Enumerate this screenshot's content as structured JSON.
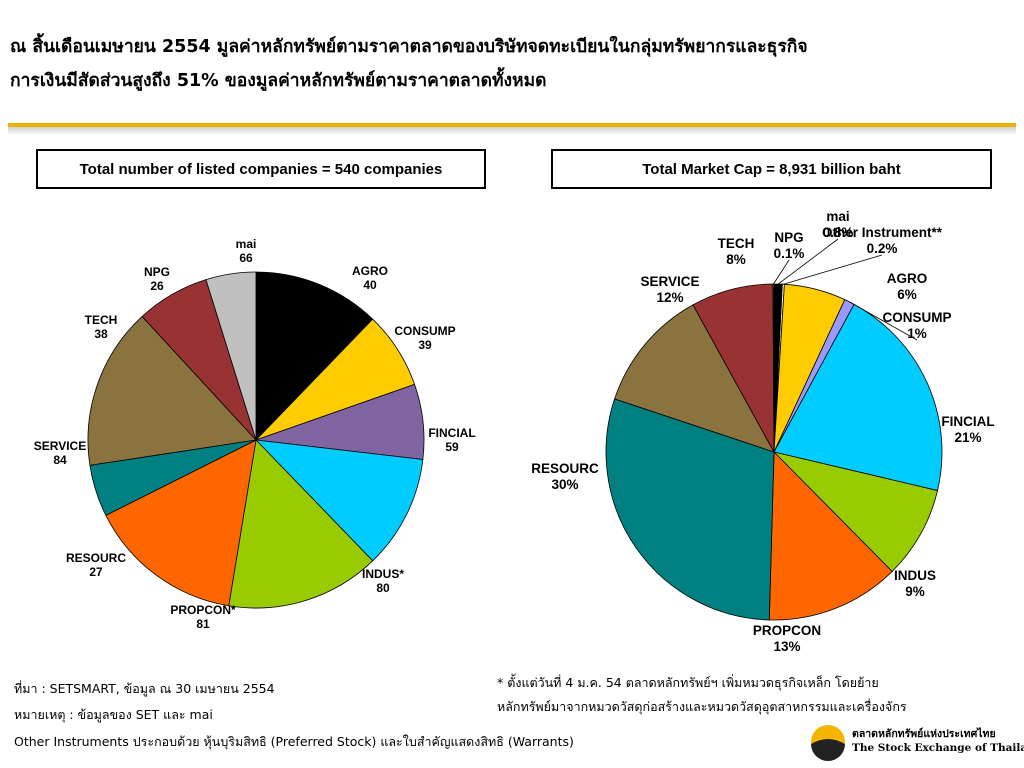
{
  "headline": {
    "line1": "ณ สิ้นเดือนเมษายน 2554 มูลค่าหลักทรัพย์ตามราคาตลาดของบริษัทจดทะเบียนในกลุ่มทรัพยากรและธุรกิจ",
    "line2": "การเงินมีสัดส่วนสูงถึง 51% ของมูลค่าหลักทรัพย์ตามราคาตลาดทั้งหมด"
  },
  "colors": {
    "accent_rule": "#e8b400",
    "mai": "#000000",
    "agro": "#ffcc00",
    "consump": "#8064a2",
    "fincial": "#00ccff",
    "indus": "#99cc00",
    "propcon": "#ff6600",
    "resourc": "#008080",
    "service": "#8b7340",
    "tech": "#993333",
    "npg": "#c0c0c0",
    "other": "#ffffcc"
  },
  "chart_data": [
    {
      "type": "pie",
      "title": "Total number of listed companies = 540 companies",
      "unit": "companies",
      "slices": [
        {
          "name": "mai",
          "value": 66,
          "label": "66",
          "color": "#000000"
        },
        {
          "name": "AGRO",
          "value": 40,
          "label": "40",
          "color": "#ffcc00"
        },
        {
          "name": "CONSUMP",
          "value": 39,
          "label": "39",
          "color": "#8064a2"
        },
        {
          "name": "FINCIAL",
          "value": 59,
          "label": "59",
          "color": "#00ccff"
        },
        {
          "name": "INDUS*",
          "value": 80,
          "label": "80",
          "color": "#99cc00"
        },
        {
          "name": "PROPCON*",
          "value": 81,
          "label": "81",
          "color": "#ff6600"
        },
        {
          "name": "RESOURC",
          "value": 27,
          "label": "27",
          "color": "#008080"
        },
        {
          "name": "SERVICE",
          "value": 84,
          "label": "84",
          "color": "#8b7340"
        },
        {
          "name": "TECH",
          "value": 38,
          "label": "38",
          "color": "#993333"
        },
        {
          "name": "NPG",
          "value": 26,
          "label": "26",
          "color": "#c0c0c0"
        }
      ]
    },
    {
      "type": "pie",
      "title": "Total Market Cap = 8,931  billion baht",
      "unit": "percent",
      "slices": [
        {
          "name": "mai",
          "value": 0.8,
          "label": "0.8%",
          "color": "#000000"
        },
        {
          "name": "Other Instrument**",
          "value": 0.2,
          "label": "0.2%",
          "color": "#ffffcc"
        },
        {
          "name": "AGRO",
          "value": 6,
          "label": "6%",
          "color": "#ffcc00"
        },
        {
          "name": "CONSUMP",
          "value": 1,
          "label": "1%",
          "color": "#9999ff"
        },
        {
          "name": "FINCIAL",
          "value": 21,
          "label": "21%",
          "color": "#00ccff"
        },
        {
          "name": "INDUS",
          "value": 9,
          "label": "9%",
          "color": "#99cc00"
        },
        {
          "name": "PROPCON",
          "value": 13,
          "label": "13%",
          "color": "#ff6600"
        },
        {
          "name": "RESOURC",
          "value": 30,
          "label": "30%",
          "color": "#008080"
        },
        {
          "name": "SERVICE",
          "value": 12,
          "label": "12%",
          "color": "#8b7340"
        },
        {
          "name": "TECH",
          "value": 8,
          "label": "8%",
          "color": "#993333"
        },
        {
          "name": "NPG",
          "value": 0.1,
          "label": "0.1%",
          "color": "#336699"
        }
      ]
    }
  ],
  "footer": {
    "source": "ที่มา : SETSMART, ข้อมูล ณ 30 เมษายน 2554",
    "note": "หมายเหตุ : ข้อมูลของ SET และ mai",
    "other_instruments": "Other Instruments ประกอบด้วย หุ้นบุริมสิทธิ (Preferred Stock) และใบสำคัญแสดงสิทธิ (Warrants)",
    "footnote_line1": "* ตั้งแต่วันที่ 4 ม.ค. 54 ตลาดหลักทรัพย์ฯ เพิ่มหมวดธุรกิจเหล็ก โดยย้าย",
    "footnote_line2": "หลักทรัพย์มาจากหมวดวัสดุก่อสร้างและหมวดวัสดุอุตสาหกรรมและเครื่องจักร"
  },
  "logo": {
    "thai": "ตลาดหลักทรัพย์แห่งประเทศไทย",
    "english": "The Stock Exchange of Thailand",
    "icon": "set-sun-logo-icon"
  }
}
